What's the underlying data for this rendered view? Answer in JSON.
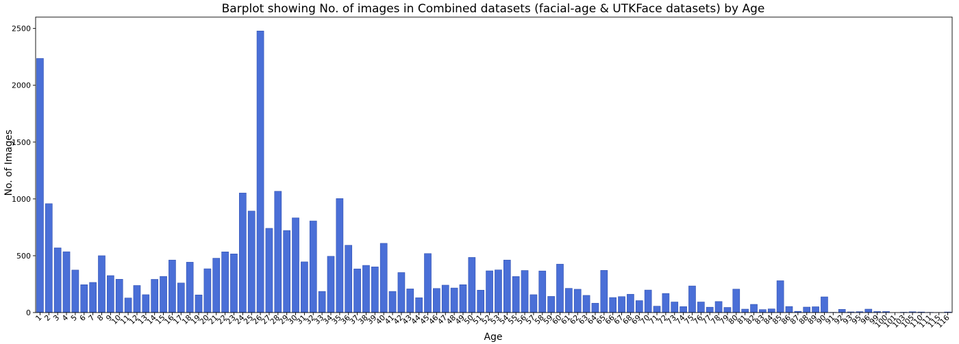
{
  "chart_data": {
    "type": "bar",
    "title": "Barplot showing No. of images in Combined datasets (facial-age & UTKFace datasets) by Age",
    "xlabel": "Age",
    "ylabel": "No. of Images",
    "ylim": [
      0,
      2600
    ],
    "yticks": [
      0,
      500,
      1000,
      1500,
      2000,
      2500
    ],
    "bar_color": "#4a6fd7",
    "categories": [
      "1",
      "2",
      "3",
      "4",
      "5",
      "6",
      "7",
      "8",
      "9",
      "10",
      "11",
      "12",
      "13",
      "14",
      "15",
      "16",
      "17",
      "18",
      "19",
      "20",
      "21",
      "22",
      "23",
      "24",
      "25",
      "26",
      "27",
      "28",
      "29",
      "30",
      "31",
      "32",
      "33",
      "34",
      "35",
      "36",
      "37",
      "38",
      "39",
      "40",
      "41",
      "42",
      "43",
      "44",
      "45",
      "46",
      "47",
      "48",
      "49",
      "50",
      "51",
      "52",
      "53",
      "54",
      "55",
      "56",
      "57",
      "58",
      "59",
      "60",
      "61",
      "62",
      "63",
      "64",
      "65",
      "66",
      "67",
      "68",
      "69",
      "70",
      "71",
      "72",
      "73",
      "74",
      "75",
      "76",
      "77",
      "78",
      "79",
      "80",
      "81",
      "82",
      "83",
      "84",
      "85",
      "86",
      "87",
      "88",
      "89",
      "90",
      "91",
      "92",
      "93",
      "95",
      "96",
      "99",
      "100",
      "101",
      "103",
      "105",
      "110",
      "111",
      "115",
      "116"
    ],
    "values": [
      2236,
      958,
      569,
      535,
      374,
      245,
      265,
      500,
      325,
      293,
      128,
      238,
      157,
      292,
      318,
      462,
      260,
      443,
      155,
      385,
      478,
      534,
      516,
      1052,
      893,
      2478,
      741,
      1067,
      722,
      833,
      446,
      806,
      186,
      495,
      1003,
      592,
      384,
      415,
      402,
      609,
      186,
      352,
      208,
      130,
      519,
      212,
      241,
      216,
      245,
      485,
      197,
      367,
      375,
      462,
      317,
      370,
      157,
      366,
      142,
      426,
      213,
      205,
      151,
      82,
      371,
      132,
      140,
      161,
      105,
      198,
      56,
      168,
      93,
      52,
      234,
      93,
      47,
      97,
      45,
      206,
      30,
      72,
      26,
      32,
      280,
      53,
      11,
      48,
      51,
      138,
      2,
      28,
      6,
      8,
      30,
      9,
      9,
      0,
      3,
      7,
      5,
      2,
      1,
      5
    ]
  }
}
